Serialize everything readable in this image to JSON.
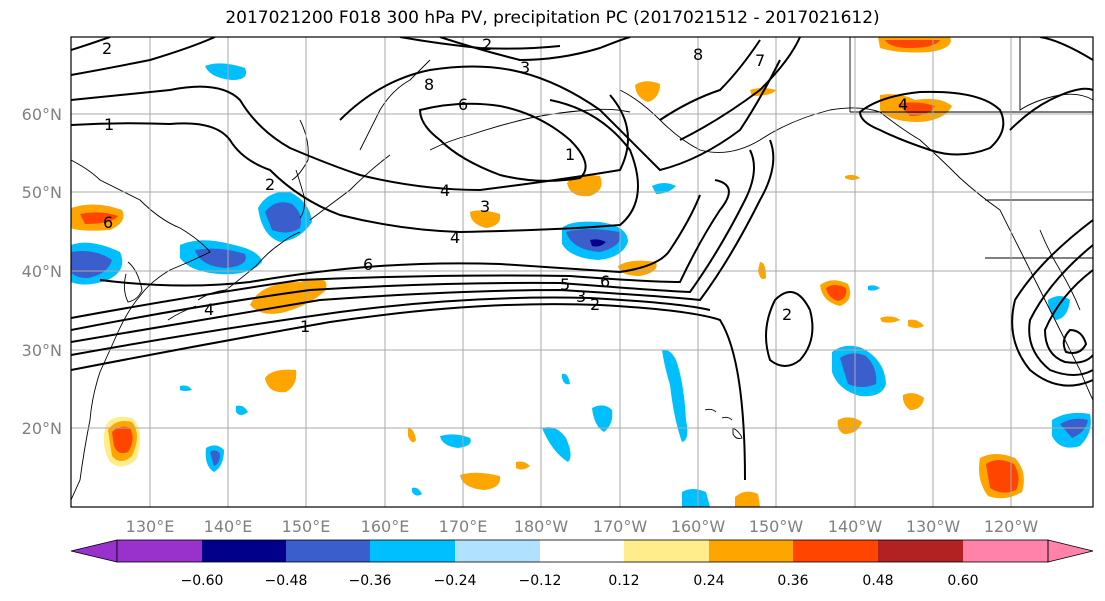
{
  "title": "2017021200 F018 300 hPa PV, precipitation PC (2017021512 - 2017021612)",
  "lat_labels": [
    "60°N",
    "50°N",
    "40°N",
    "30°N",
    "20°N"
  ],
  "lon_labels": [
    "130°E",
    "140°E",
    "150°E",
    "160°E",
    "170°E",
    "180°W",
    "170°W",
    "160°W",
    "150°W",
    "140°W",
    "130°W",
    "120°W"
  ],
  "colorbar": {
    "ticks": [
      "−0.60",
      "−0.48",
      "−0.36",
      "−0.24",
      "−0.12",
      "0.12",
      "0.24",
      "0.36",
      "0.48",
      "0.60"
    ],
    "colors": [
      "#9932cc",
      "#00008b",
      "#3a5fcd",
      "#00bfff",
      "#b0e2ff",
      "#ffffff",
      "#ffec8b",
      "#ffa500",
      "#ff4500",
      "#b22222",
      "#ff82ab"
    ]
  },
  "contour_labels": [
    "1",
    "2",
    "3",
    "4",
    "5",
    "6",
    "7",
    "8"
  ],
  "colors": {
    "grid": "#a9a9a9",
    "contour": "#000000"
  }
}
